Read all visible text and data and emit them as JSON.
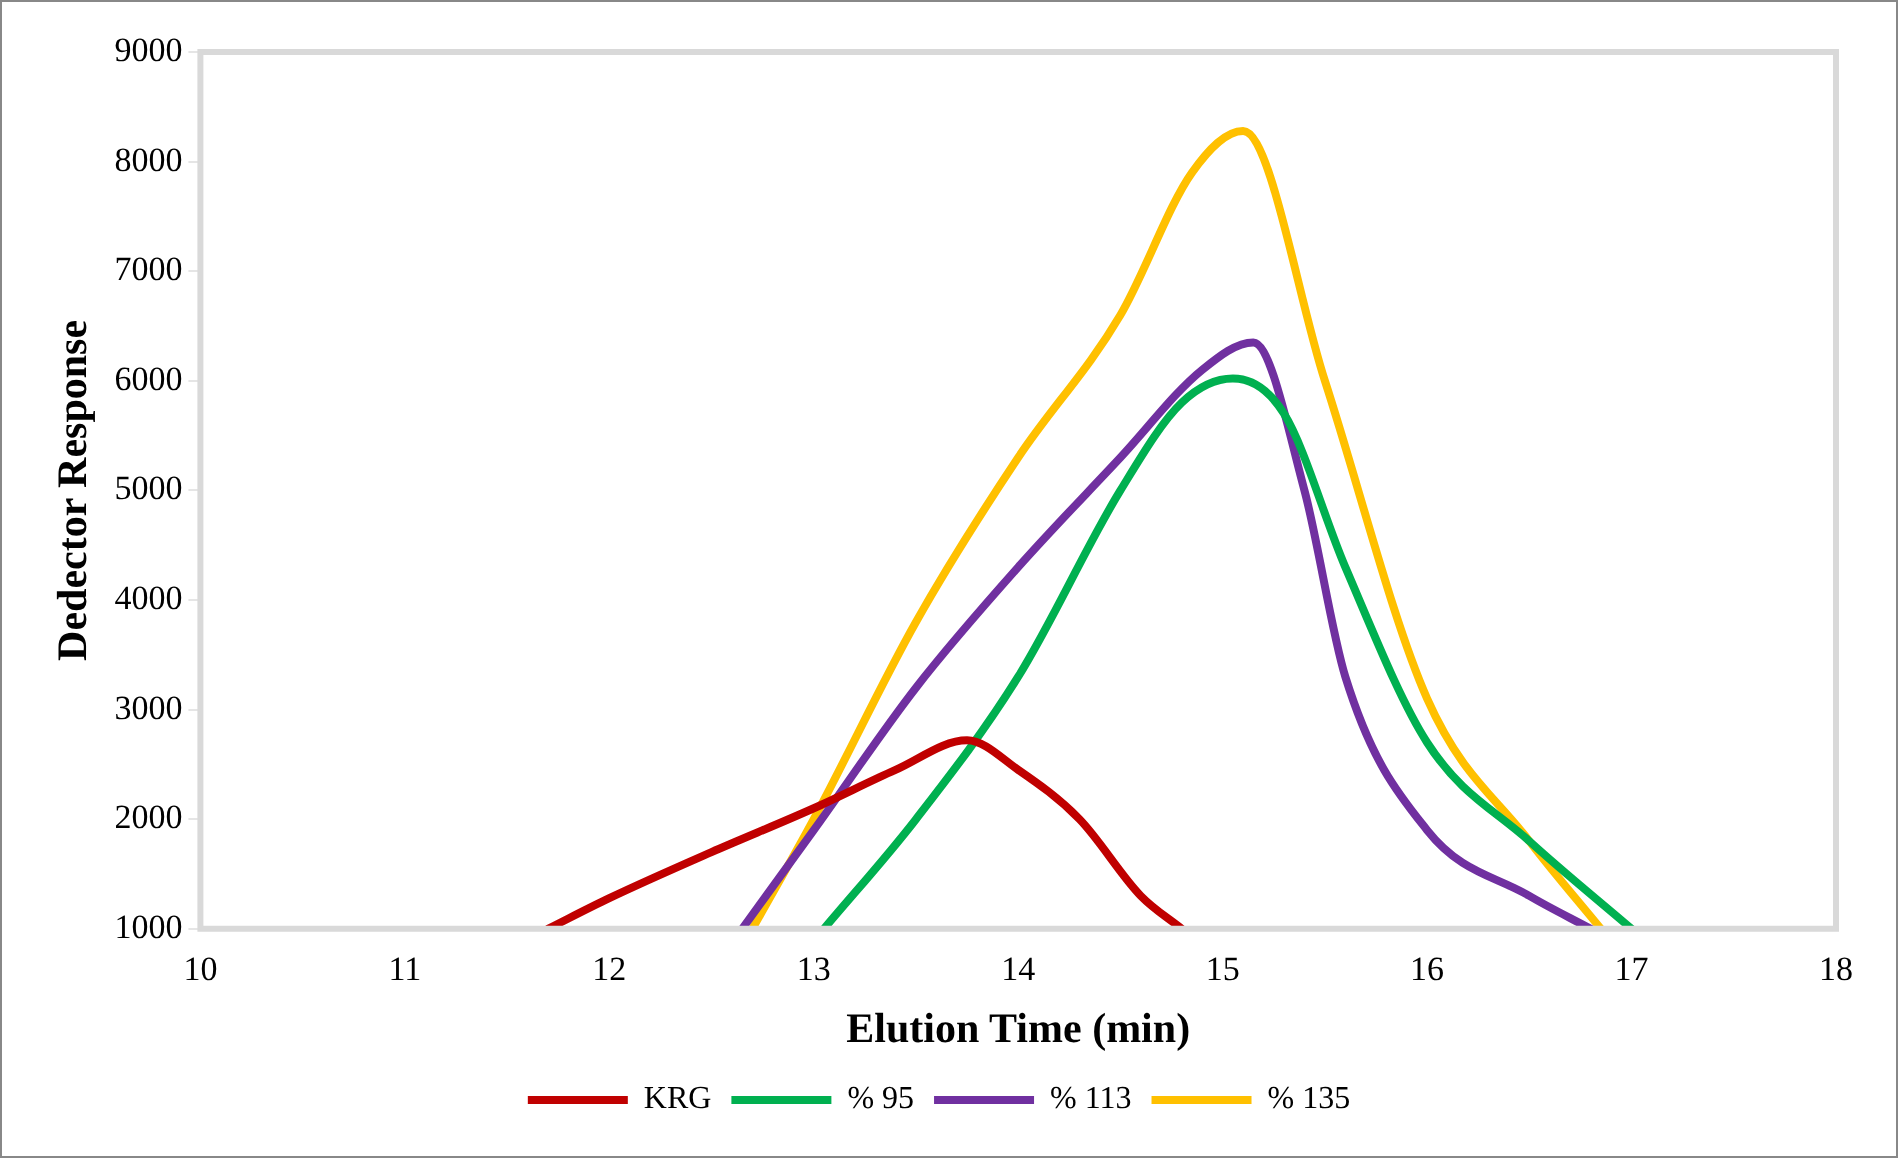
{
  "chart_data": {
    "type": "line",
    "xlabel": "Elution Time (min)",
    "ylabel": "Dedector Response",
    "xlim": [
      10,
      18
    ],
    "xticks": [
      10,
      11,
      12,
      13,
      14,
      15,
      16,
      17,
      18
    ],
    "ylim": [
      1000,
      9000
    ],
    "yticks": [
      1000,
      2000,
      3000,
      4000,
      5000,
      6000,
      7000,
      8000,
      9000
    ],
    "grid": false,
    "legend": "bottom",
    "marker": "none",
    "line_style": "solid",
    "series": [
      {
        "name": "KRG",
        "color": "#c00000",
        "x": [
          11.7,
          12,
          12.5,
          13,
          13.4,
          13.75,
          14,
          14.3,
          14.6,
          14.8
        ],
        "values": [
          1000,
          1280,
          1700,
          2100,
          2450,
          2720,
          2450,
          2000,
          1300,
          1000
        ]
      },
      {
        "name": "% 95",
        "color": "#00b050",
        "x": [
          13.05,
          13.5,
          14,
          14.5,
          14.8,
          15.05,
          15.3,
          15.6,
          16,
          16.5,
          17
        ],
        "values": [
          1000,
          2000,
          3300,
          5000,
          5800,
          6020,
          5700,
          4300,
          2700,
          1800,
          1000
        ]
      },
      {
        "name": "% 113",
        "color": "#7030a0",
        "x": [
          12.65,
          13,
          13.5,
          14,
          14.5,
          14.9,
          15.15,
          15.4,
          15.6,
          16,
          16.5,
          16.8
        ],
        "values": [
          1000,
          1900,
          3200,
          4300,
          5300,
          6100,
          6350,
          5000,
          3300,
          1900,
          1300,
          1000
        ]
      },
      {
        "name": "% 135",
        "color": "#ffc000",
        "x": [
          12.7,
          13,
          13.5,
          14,
          14.5,
          14.85,
          15.1,
          15.5,
          16,
          16.5,
          16.85
        ],
        "values": [
          1000,
          2000,
          3800,
          5300,
          6600,
          7900,
          8280,
          6000,
          3100,
          1800,
          1000
        ]
      }
    ]
  }
}
